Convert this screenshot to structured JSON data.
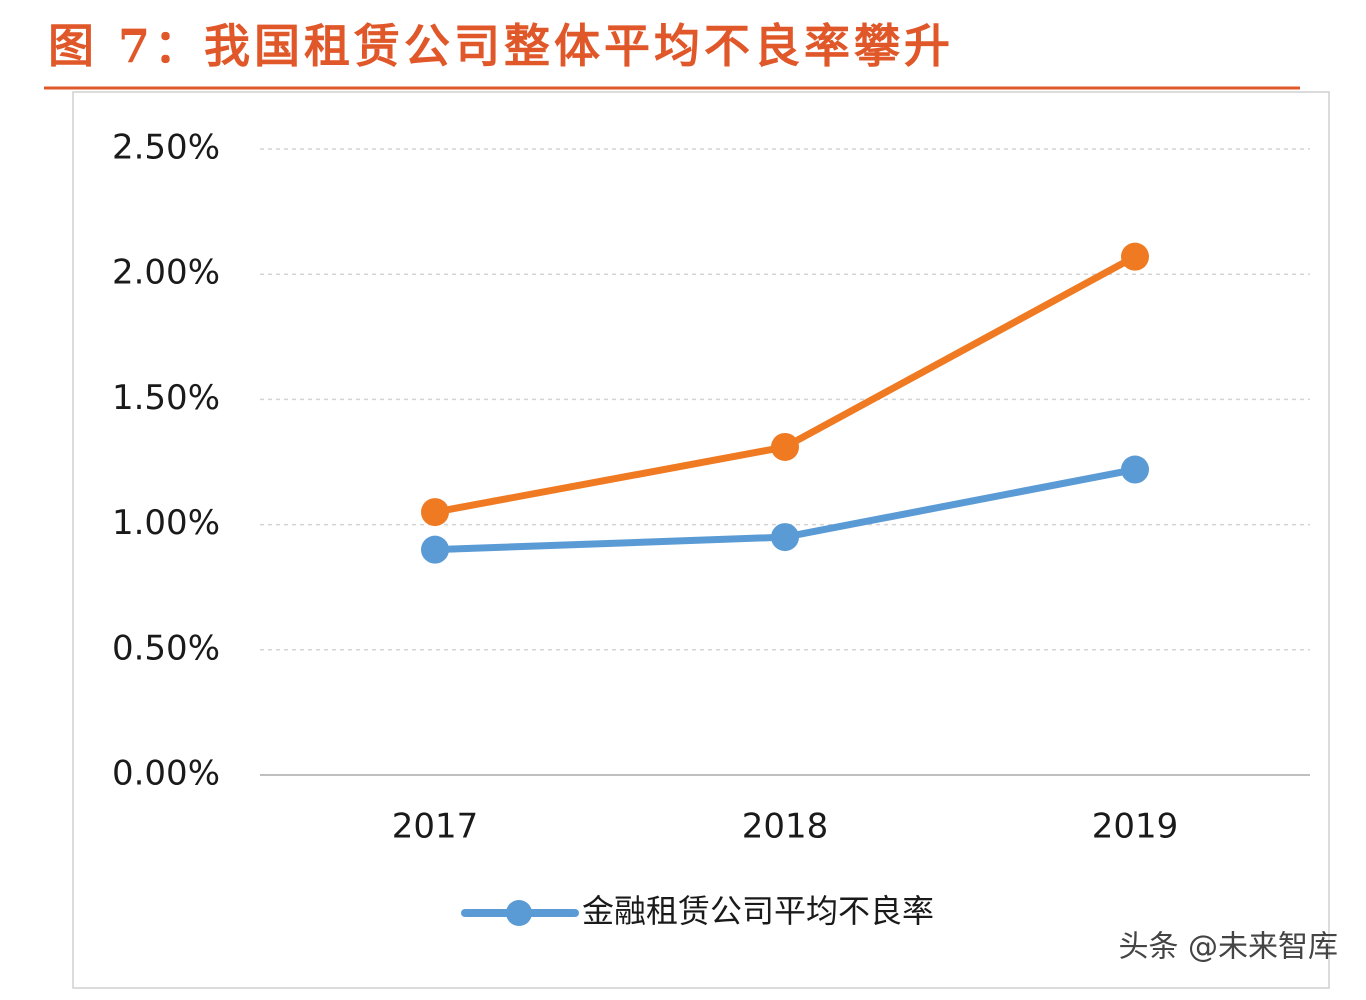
{
  "chart_data": {
    "type": "line",
    "title": "图 7：我国租赁公司整体平均不良率攀升",
    "categories": [
      "2017",
      "2018",
      "2019"
    ],
    "series": [
      {
        "name": "金融租赁公司平均不良率",
        "color": "#5b9bd5",
        "values": [
          0.9,
          0.95,
          1.22
        ]
      },
      {
        "color": "#f07a22",
        "values": [
          1.05,
          1.31,
          2.07
        ]
      }
    ],
    "ylim": [
      0,
      2.5
    ],
    "yticks": [
      {
        "value": 0,
        "label": "0.00%"
      },
      {
        "value": 0.5,
        "label": "0.50%"
      },
      {
        "value": 1,
        "label": "1.00%"
      },
      {
        "value": 1.5,
        "label": "1.50%"
      },
      {
        "value": 2,
        "label": "2.00%"
      },
      {
        "value": 2.5,
        "label": "2.50%"
      }
    ],
    "grid": true,
    "watermark": "头条 @未来智库"
  }
}
